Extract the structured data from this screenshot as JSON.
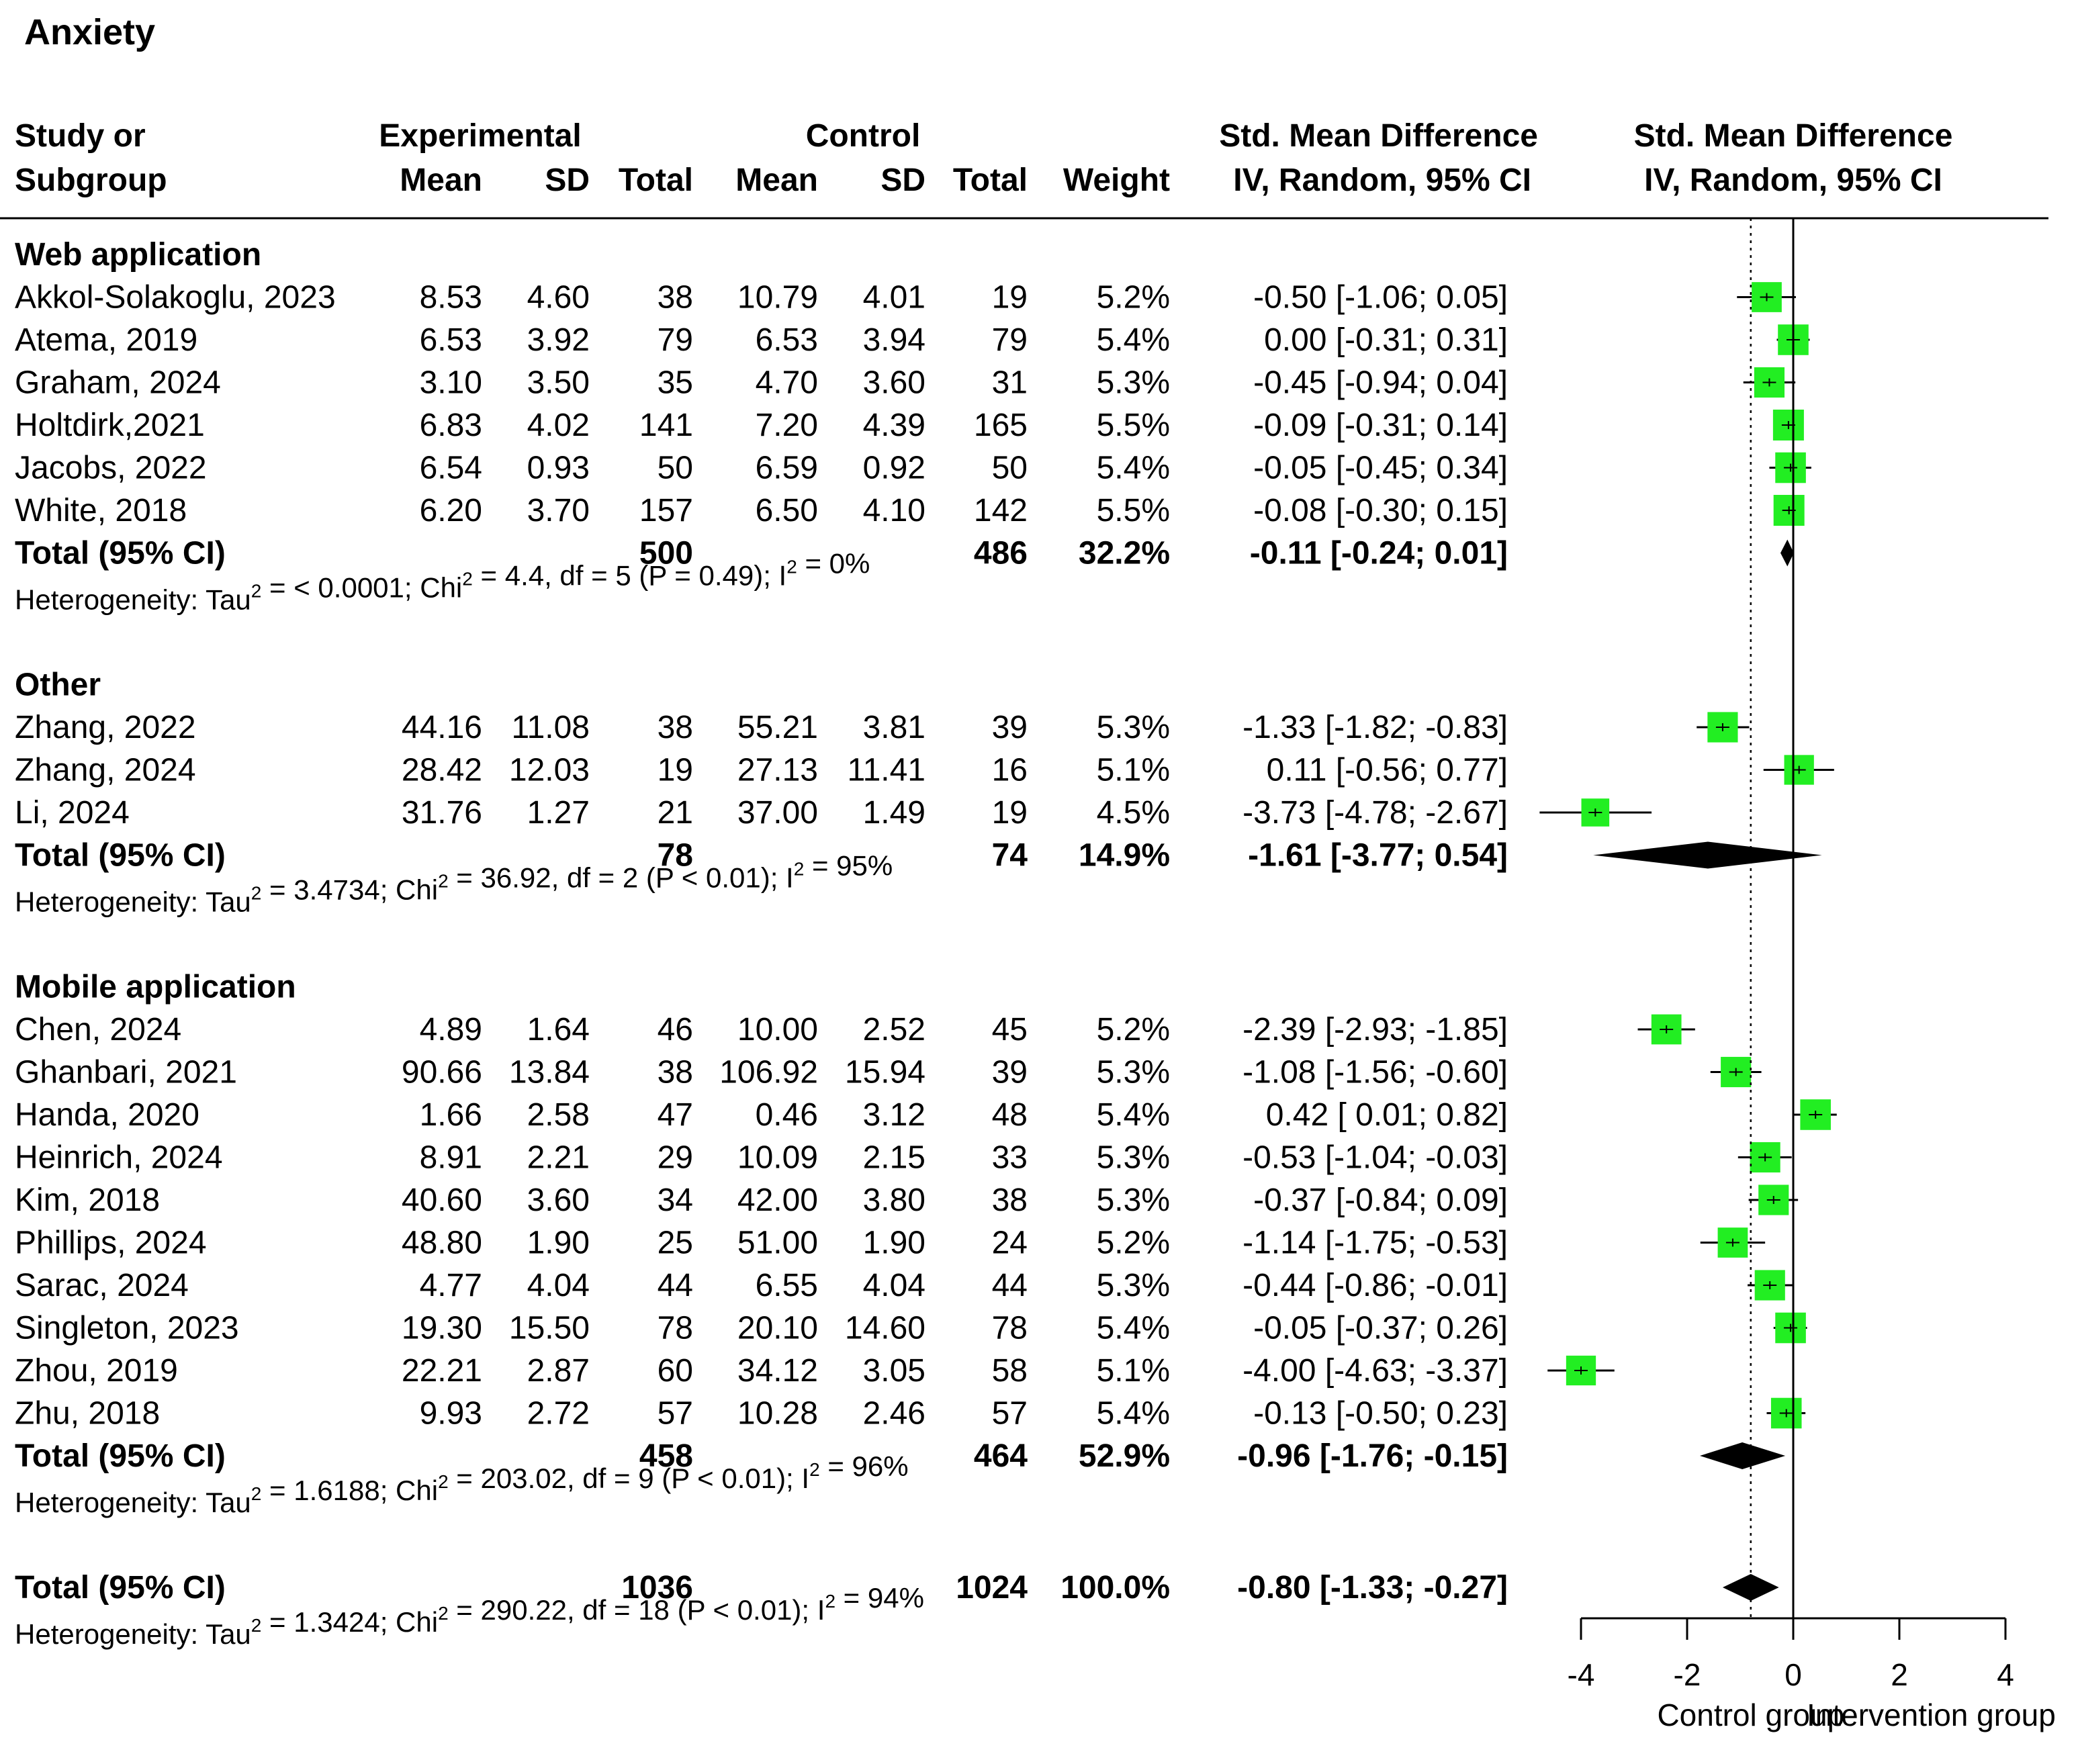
{
  "chart_data": {
    "type": "forest",
    "title": "Anxiety",
    "headers": {
      "study_line1": "Study or",
      "study_line2": "Subgroup",
      "experimental": "Experimental",
      "control": "Control",
      "mean": "Mean",
      "sd": "SD",
      "total": "Total",
      "weight": "Weight",
      "smd_line1": "Std. Mean Difference",
      "smd_line2": "IV, Random, 95% CI"
    },
    "subgroups": [
      {
        "name": "Web application",
        "studies": [
          {
            "study": "Akkol-Solakoglu, 2023",
            "e_mean": "8.53",
            "e_sd": "4.60",
            "e_total": "38",
            "c_mean": "10.79",
            "c_sd": "4.01",
            "c_total": "19",
            "weight": "5.2%",
            "ci": "-0.50 [-1.06;  0.05]",
            "smd": -0.5,
            "lo": -1.06,
            "hi": 0.05,
            "w": 5.2
          },
          {
            "study": "Atema, 2019",
            "e_mean": "6.53",
            "e_sd": "3.92",
            "e_total": "79",
            "c_mean": "6.53",
            "c_sd": "3.94",
            "c_total": "79",
            "weight": "5.4%",
            "ci": "0.00 [-0.31;  0.31]",
            "smd": 0.0,
            "lo": -0.31,
            "hi": 0.31,
            "w": 5.4
          },
          {
            "study": "Graham, 2024",
            "e_mean": "3.10",
            "e_sd": "3.50",
            "e_total": "35",
            "c_mean": "4.70",
            "c_sd": "3.60",
            "c_total": "31",
            "weight": "5.3%",
            "ci": "-0.45 [-0.94;  0.04]",
            "smd": -0.45,
            "lo": -0.94,
            "hi": 0.04,
            "w": 5.3
          },
          {
            "study": "Holtdirk,2021",
            "e_mean": "6.83",
            "e_sd": "4.02",
            "e_total": "141",
            "c_mean": "7.20",
            "c_sd": "4.39",
            "c_total": "165",
            "weight": "5.5%",
            "ci": "-0.09 [-0.31;  0.14]",
            "smd": -0.09,
            "lo": -0.31,
            "hi": 0.14,
            "w": 5.5
          },
          {
            "study": "Jacobs, 2022",
            "e_mean": "6.54",
            "e_sd": "0.93",
            "e_total": "50",
            "c_mean": "6.59",
            "c_sd": "0.92",
            "c_total": "50",
            "weight": "5.4%",
            "ci": "-0.05 [-0.45;  0.34]",
            "smd": -0.05,
            "lo": -0.45,
            "hi": 0.34,
            "w": 5.4
          },
          {
            "study": "White, 2018",
            "e_mean": "6.20",
            "e_sd": "3.70",
            "e_total": "157",
            "c_mean": "6.50",
            "c_sd": "4.10",
            "c_total": "142",
            "weight": "5.5%",
            "ci": "-0.08 [-0.30;  0.15]",
            "smd": -0.08,
            "lo": -0.3,
            "hi": 0.15,
            "w": 5.5
          }
        ],
        "total": {
          "label": "Total (95% CI)",
          "e_total": "500",
          "c_total": "486",
          "weight": "32.2%",
          "ci": "-0.11 [-0.24;  0.01]",
          "smd": -0.11,
          "lo": -0.24,
          "hi": 0.01
        },
        "heterogeneity": {
          "pre": "Heterogeneity: Tau",
          "mid1": " = < 0.0001; Chi",
          "mid2": " = 4.4, df = 5 (P = 0.49); I",
          "post": " = 0%",
          "sup": "2"
        }
      },
      {
        "name": "Other",
        "studies": [
          {
            "study": "Zhang, 2022",
            "e_mean": "44.16",
            "e_sd": "11.08",
            "e_total": "38",
            "c_mean": "55.21",
            "c_sd": "3.81",
            "c_total": "39",
            "weight": "5.3%",
            "ci": "-1.33 [-1.82; -0.83]",
            "smd": -1.33,
            "lo": -1.82,
            "hi": -0.83,
            "w": 5.3
          },
          {
            "study": "Zhang, 2024",
            "e_mean": "28.42",
            "e_sd": "12.03",
            "e_total": "19",
            "c_mean": "27.13",
            "c_sd": "11.41",
            "c_total": "16",
            "weight": "5.1%",
            "ci": "0.11 [-0.56;  0.77]",
            "smd": 0.11,
            "lo": -0.56,
            "hi": 0.77,
            "w": 5.1
          },
          {
            "study": "Li, 2024",
            "e_mean": "31.76",
            "e_sd": "1.27",
            "e_total": "21",
            "c_mean": "37.00",
            "c_sd": "1.49",
            "c_total": "19",
            "weight": "4.5%",
            "ci": "-3.73 [-4.78; -2.67]",
            "smd": -3.73,
            "lo": -4.78,
            "hi": -2.67,
            "w": 4.5
          }
        ],
        "total": {
          "label": "Total (95% CI)",
          "e_total": "78",
          "c_total": "74",
          "weight": "14.9%",
          "ci": "-1.61 [-3.77;  0.54]",
          "smd": -1.61,
          "lo": -3.77,
          "hi": 0.54
        },
        "heterogeneity": {
          "pre": "Heterogeneity: Tau",
          "mid1": " = 3.4734; Chi",
          "mid2": " = 36.92, df = 2 (P < 0.01); I",
          "post": " = 95%",
          "sup": "2"
        }
      },
      {
        "name": "Mobile application",
        "studies": [
          {
            "study": "Chen, 2024",
            "e_mean": "4.89",
            "e_sd": "1.64",
            "e_total": "46",
            "c_mean": "10.00",
            "c_sd": "2.52",
            "c_total": "45",
            "weight": "5.2%",
            "ci": "-2.39 [-2.93; -1.85]",
            "smd": -2.39,
            "lo": -2.93,
            "hi": -1.85,
            "w": 5.2
          },
          {
            "study": "Ghanbari, 2021",
            "e_mean": "90.66",
            "e_sd": "13.84",
            "e_total": "38",
            "c_mean": "106.92",
            "c_sd": "15.94",
            "c_total": "39",
            "weight": "5.3%",
            "ci": "-1.08 [-1.56; -0.60]",
            "smd": -1.08,
            "lo": -1.56,
            "hi": -0.6,
            "w": 5.3
          },
          {
            "study": "Handa, 2020",
            "e_mean": "1.66",
            "e_sd": "2.58",
            "e_total": "47",
            "c_mean": "0.46",
            "c_sd": "3.12",
            "c_total": "48",
            "weight": "5.4%",
            "ci": "0.42 [ 0.01;  0.82]",
            "smd": 0.42,
            "lo": 0.01,
            "hi": 0.82,
            "w": 5.4
          },
          {
            "study": "Heinrich, 2024",
            "e_mean": "8.91",
            "e_sd": "2.21",
            "e_total": "29",
            "c_mean": "10.09",
            "c_sd": "2.15",
            "c_total": "33",
            "weight": "5.3%",
            "ci": "-0.53 [-1.04; -0.03]",
            "smd": -0.53,
            "lo": -1.04,
            "hi": -0.03,
            "w": 5.3
          },
          {
            "study": "Kim, 2018",
            "e_mean": "40.60",
            "e_sd": "3.60",
            "e_total": "34",
            "c_mean": "42.00",
            "c_sd": "3.80",
            "c_total": "38",
            "weight": "5.3%",
            "ci": "-0.37 [-0.84;  0.09]",
            "smd": -0.37,
            "lo": -0.84,
            "hi": 0.09,
            "w": 5.3
          },
          {
            "study": "Phillips, 2024",
            "e_mean": "48.80",
            "e_sd": "1.90",
            "e_total": "25",
            "c_mean": "51.00",
            "c_sd": "1.90",
            "c_total": "24",
            "weight": "5.2%",
            "ci": "-1.14 [-1.75; -0.53]",
            "smd": -1.14,
            "lo": -1.75,
            "hi": -0.53,
            "w": 5.2
          },
          {
            "study": "Sarac, 2024",
            "e_mean": "4.77",
            "e_sd": "4.04",
            "e_total": "44",
            "c_mean": "6.55",
            "c_sd": "4.04",
            "c_total": "44",
            "weight": "5.3%",
            "ci": "-0.44 [-0.86; -0.01]",
            "smd": -0.44,
            "lo": -0.86,
            "hi": -0.01,
            "w": 5.3
          },
          {
            "study": "Singleton, 2023",
            "e_mean": "19.30",
            "e_sd": "15.50",
            "e_total": "78",
            "c_mean": "20.10",
            "c_sd": "14.60",
            "c_total": "78",
            "weight": "5.4%",
            "ci": "-0.05 [-0.37;  0.26]",
            "smd": -0.05,
            "lo": -0.37,
            "hi": 0.26,
            "w": 5.4
          },
          {
            "study": "Zhou, 2019",
            "e_mean": "22.21",
            "e_sd": "2.87",
            "e_total": "60",
            "c_mean": "34.12",
            "c_sd": "3.05",
            "c_total": "58",
            "weight": "5.1%",
            "ci": "-4.00 [-4.63; -3.37]",
            "smd": -4.0,
            "lo": -4.63,
            "hi": -3.37,
            "w": 5.1
          },
          {
            "study": "Zhu, 2018",
            "e_mean": "9.93",
            "e_sd": "2.72",
            "e_total": "57",
            "c_mean": "10.28",
            "c_sd": "2.46",
            "c_total": "57",
            "weight": "5.4%",
            "ci": "-0.13 [-0.50;  0.23]",
            "smd": -0.13,
            "lo": -0.5,
            "hi": 0.23,
            "w": 5.4
          }
        ],
        "total": {
          "label": "Total (95% CI)",
          "e_total": "458",
          "c_total": "464",
          "weight": "52.9%",
          "ci": "-0.96 [-1.76; -0.15]",
          "smd": -0.96,
          "lo": -1.76,
          "hi": -0.15
        },
        "heterogeneity": {
          "pre": "Heterogeneity: Tau",
          "mid1": " = 1.6188; Chi",
          "mid2": " = 203.02, df = 9 (P < 0.01); I",
          "post": " = 96%",
          "sup": "2"
        }
      }
    ],
    "overall": {
      "label": "Total (95% CI)",
      "e_total": "1036",
      "c_total": "1024",
      "weight": "100.0%",
      "ci": "-0.80 [-1.33; -0.27]",
      "smd": -0.8,
      "lo": -1.33,
      "hi": -0.27,
      "heterogeneity": {
        "pre": "Heterogeneity: Tau",
        "mid1": " = 1.3424; Chi",
        "mid2": " = 290.22, df = 18 (P < 0.01); I",
        "post": " = 94%",
        "sup": "2"
      }
    },
    "axis": {
      "xlim": [
        -4,
        4
      ],
      "ticks": [
        -4,
        -2,
        0,
        2,
        4
      ],
      "tick_labels": [
        "-4",
        "-2",
        "0",
        "2",
        "4"
      ],
      "null_line": 0,
      "pooled_line": -0.8
    },
    "xlabel_left": "Control group",
    "xlabel_right": "Intervention group",
    "colors": {
      "square": "#22ee22",
      "diamond": "#000000",
      "line": "#000000"
    }
  }
}
